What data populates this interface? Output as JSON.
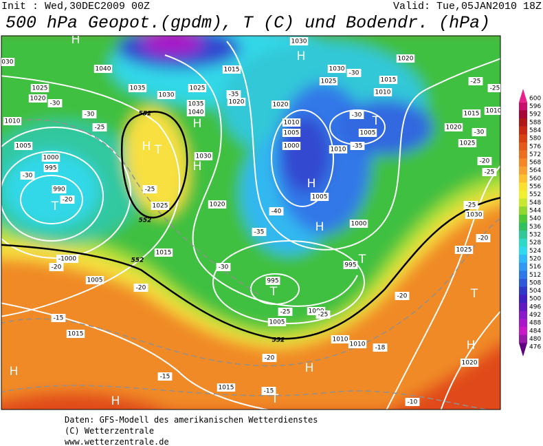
{
  "header": {
    "init": "Init : Wed,30DEC2009 00Z",
    "valid": "Valid: Tue,05JAN2010 18Z",
    "title": "500 hPa Geopot.(gpdm), T (C) und Bodendr. (hPa)"
  },
  "footer": [
    "Daten: GFS-Modell des amerikanischen Wetterdienstes",
    "(C) Wetterzentrale",
    "www.wetterzentrale.de"
  ],
  "legend": {
    "labels": [
      600,
      596,
      592,
      588,
      584,
      580,
      576,
      572,
      568,
      564,
      560,
      556,
      552,
      548,
      544,
      540,
      536,
      532,
      528,
      524,
      520,
      516,
      512,
      508,
      504,
      500,
      496,
      492,
      488,
      484,
      480,
      476
    ],
    "colors": [
      "#e8208a",
      "#c8106a",
      "#a80838",
      "#b01818",
      "#c82810",
      "#d84010",
      "#e45818",
      "#ec7020",
      "#f48828",
      "#f8a030",
      "#fcc030",
      "#fce030",
      "#f0f030",
      "#c8e830",
      "#90d830",
      "#50c838",
      "#30c060",
      "#30c898",
      "#30d8c8",
      "#30d8f0",
      "#30b8f8",
      "#3098f0",
      "#3078e8",
      "#3058d8",
      "#3038c8",
      "#4020c0",
      "#6018c0",
      "#8818c8",
      "#a818c8",
      "#c818c8",
      "#9818a8",
      "#600080"
    ]
  },
  "map_labels": [
    "H",
    "H",
    "H",
    "H",
    "H",
    "H",
    "T",
    "T",
    "T",
    "T",
    "T",
    "T",
    "H",
    "H",
    "H",
    "H",
    "T",
    "H",
    "1030",
    "1040",
    "1025",
    "1035",
    "1020",
    "-30",
    "-30",
    "1010",
    "-25",
    "1030",
    "1025",
    "-35",
    "1015",
    "1020",
    "1035",
    "1040",
    "1030",
    "1005",
    "1000",
    "995",
    "-30",
    "990",
    "-20",
    "1025",
    "-25",
    "1020",
    "1015",
    "-1000",
    "-20",
    "1005",
    "-20",
    "-15",
    "1015",
    "-30",
    "-35",
    "-40",
    "1000",
    "1005",
    "1010",
    "1010",
    "1005",
    "-35",
    "-30",
    "1020",
    "1030",
    "1030",
    "1025",
    "-30",
    "1010",
    "1015",
    "1020",
    "-25",
    "-25",
    "1015",
    "1010",
    "1020",
    "-30",
    "1025",
    "1005",
    "1000",
    "995",
    "995",
    "1005",
    "1000",
    "-25",
    "-25",
    "1010",
    "1010",
    "-18",
    "-20",
    "-20",
    "-25",
    "1030",
    "1025",
    "-20",
    "-15",
    "1015",
    "-15",
    "-10",
    "1020",
    "-20",
    "-25",
    "552",
    "552",
    "552",
    "552"
  ]
}
